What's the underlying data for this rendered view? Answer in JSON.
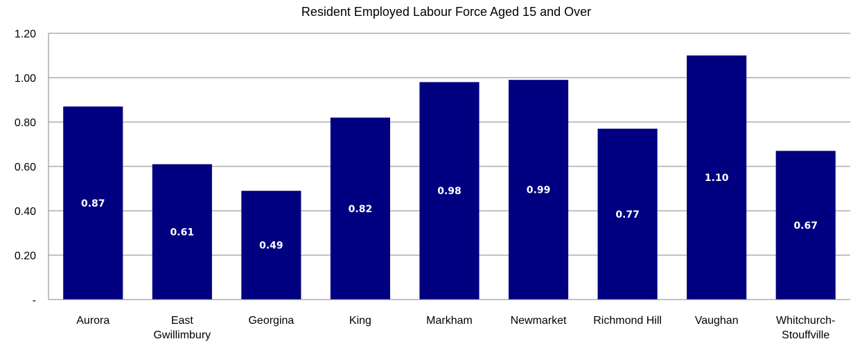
{
  "chart_data": {
    "type": "bar",
    "title": "Resident Employed Labour Force Aged 15 and Over",
    "categories": [
      "Aurora",
      "East\nGwillimbury",
      "Georgina",
      "King",
      "Markham",
      "Newmarket",
      "Richmond Hill",
      "Vaughan",
      "Whitchurch-\nStouffville"
    ],
    "values": [
      0.87,
      0.61,
      0.49,
      0.82,
      0.98,
      0.99,
      0.77,
      1.1,
      0.67
    ],
    "data_labels": [
      "0.87",
      "0.61",
      "0.49",
      "0.82",
      "0.98",
      "0.99",
      "0.77",
      "1.10",
      "0.67"
    ],
    "y_ticks": [
      "-",
      "0.20",
      "0.40",
      "0.60",
      "0.80",
      "1.00",
      "1.20"
    ],
    "ylim": [
      0,
      1.2
    ],
    "grid": true,
    "legend": "none",
    "bar_color": "#000080"
  }
}
